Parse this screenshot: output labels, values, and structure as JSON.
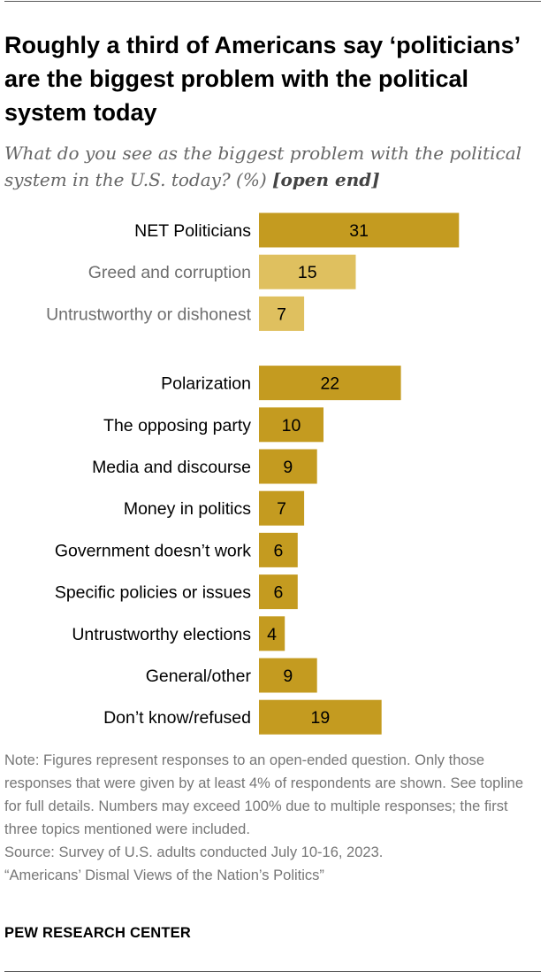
{
  "title": "Roughly a third of Americans say ‘politicians’ are the biggest problem with the political system today",
  "subtitle": {
    "text": "What do you see as the biggest problem with the political system in the U.S. today? (%)",
    "tag": "[open end]"
  },
  "colors": {
    "bar_primary": "#c49b20",
    "bar_sub": "#dfc05f",
    "label_primary": "#000000",
    "label_sub": "#6e6e6e"
  },
  "chart_data": {
    "type": "bar",
    "orientation": "horizontal",
    "categories": [
      "NET Politicians",
      "Greed and corruption",
      "Untrustworthy or dishonest",
      "Polarization",
      "The opposing party",
      "Media and discourse",
      "Money in politics",
      "Government doesn’t work",
      "Specific policies or issues",
      "Untrustworthy elections",
      "General/other",
      "Don’t know/refused"
    ],
    "values": [
      31,
      15,
      7,
      22,
      10,
      9,
      7,
      6,
      6,
      4,
      9,
      19
    ],
    "subcategory": [
      false,
      true,
      true,
      false,
      false,
      false,
      false,
      false,
      false,
      false,
      false,
      false
    ],
    "group_break_after": 2,
    "xlim": [
      0,
      31
    ],
    "grid": false,
    "data_labels": true
  },
  "note": {
    "text": "Note: Figures represent responses to an open-ended question. Only those responses that were given by at least 4% of respondents are shown. See topline for full details. Numbers may exceed 100% due to multiple responses; the first three topics mentioned were included.",
    "source": "Source: Survey of U.S. adults conducted July 10-16, 2023.",
    "report": "“Americans’ Dismal Views of the Nation’s Politics”"
  },
  "brand": "PEW RESEARCH CENTER"
}
